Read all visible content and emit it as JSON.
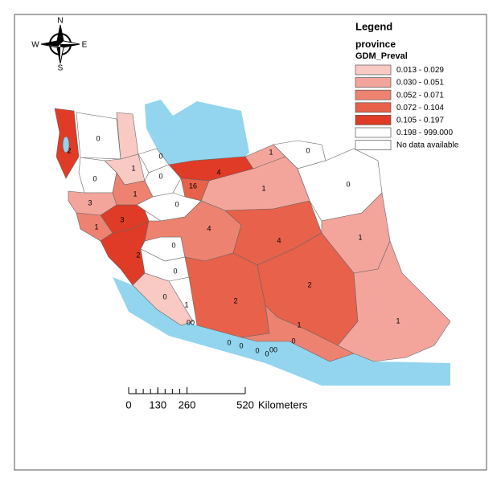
{
  "map": {
    "compass": {
      "north": "N",
      "south": "S",
      "east": "E",
      "west": "W"
    },
    "legend": {
      "title": "Legend",
      "layer": "province",
      "field": "GDM_Preval",
      "classes": [
        {
          "label": "0.013 - 0.029",
          "color": "#f9c9c4"
        },
        {
          "label": "0.030 - 0.051",
          "color": "#f4a59b"
        },
        {
          "label": "0.052 - 0.071",
          "color": "#ee8271"
        },
        {
          "label": "0.072 - 0.104",
          "color": "#e8614a"
        },
        {
          "label": "0.105 - 0.197",
          "color": "#df3b26"
        },
        {
          "label": "0.198 - 999.000",
          "color": "#ffffff"
        },
        {
          "label": "No data available",
          "color": "#ffffff"
        }
      ]
    },
    "provinces": [
      {
        "label": "2",
        "class": 4
      },
      {
        "label": "0",
        "class": 5
      },
      {
        "class": 0
      },
      {
        "label": "1",
        "class": 0
      },
      {
        "label": "0",
        "class": 5
      },
      {
        "label": "4",
        "class": 4
      },
      {
        "label": "1",
        "class": 1
      },
      {
        "label": "0",
        "class": 5
      },
      {
        "label": "0",
        "class": 5
      },
      {
        "label": "1",
        "class": 1
      },
      {
        "label": "16",
        "class": 3
      },
      {
        "label": "0",
        "class": 5
      },
      {
        "label": "0",
        "class": 5
      },
      {
        "label": "1",
        "class": 2
      },
      {
        "label": "0",
        "class": 5
      },
      {
        "label": "3",
        "class": 1
      },
      {
        "label": "1",
        "class": 2
      },
      {
        "label": "3",
        "class": 4
      },
      {
        "label": "2",
        "class": 4
      },
      {
        "label": "0",
        "class": 5
      },
      {
        "label": "0",
        "class": 5
      },
      {
        "label": "1",
        "class": 0
      },
      {
        "label": "4",
        "class": 2
      },
      {
        "label": "2",
        "class": 3
      },
      {
        "label": "4",
        "class": 3
      },
      {
        "label": "1",
        "class": 1
      },
      {
        "label": "2",
        "class": 3
      },
      {
        "label": "1",
        "class": 2
      },
      {
        "label": "1",
        "class": 1
      }
    ],
    "islands": [
      "0",
      "00",
      "0",
      "0",
      "0",
      "0",
      "00",
      "0"
    ],
    "scale": {
      "ticks": [
        0,
        130,
        260,
        520
      ],
      "unit": "Kilometers"
    }
  }
}
